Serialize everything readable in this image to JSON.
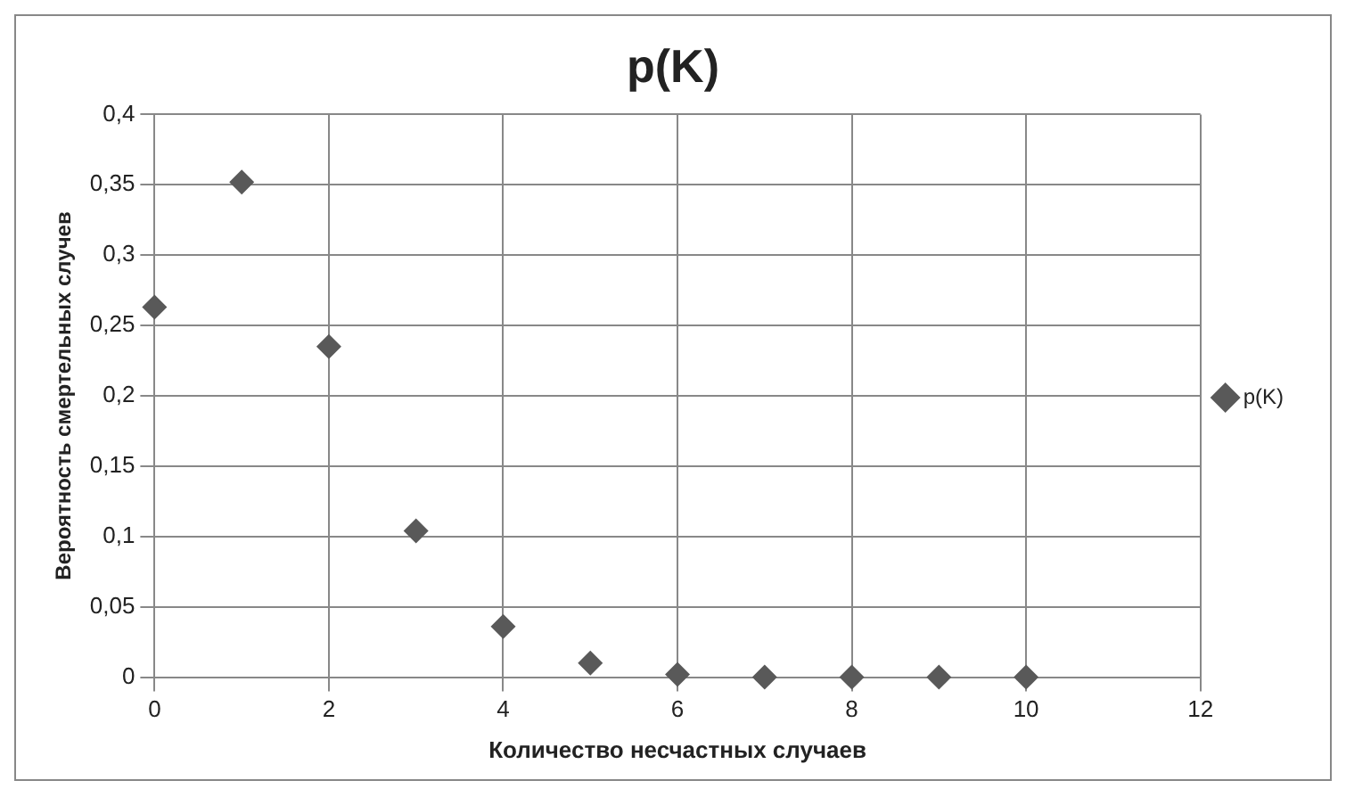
{
  "chart_data": {
    "type": "scatter",
    "title": "p(K)",
    "xlabel": "Количество несчастных случаев",
    "ylabel": "Вероятность смертельных случев",
    "x": [
      0,
      1,
      2,
      3,
      4,
      5,
      6,
      7,
      8,
      9,
      10
    ],
    "series": [
      {
        "name": "p(K)",
        "color": "#595959",
        "values": [
          0.263,
          0.352,
          0.235,
          0.104,
          0.036,
          0.01,
          0.002,
          0,
          0,
          0,
          0
        ]
      }
    ],
    "xlim": [
      0,
      12
    ],
    "xticks": [
      0,
      2,
      4,
      6,
      8,
      10,
      12
    ],
    "ylim": [
      0,
      0.4
    ],
    "yticks": [
      {
        "value": 0,
        "label": "0"
      },
      {
        "value": 0.05,
        "label": "0,05"
      },
      {
        "value": 0.1,
        "label": "0,1"
      },
      {
        "value": 0.15,
        "label": "0,15"
      },
      {
        "value": 0.2,
        "label": "0,2"
      },
      {
        "value": 0.25,
        "label": "0,25"
      },
      {
        "value": 0.3,
        "label": "0,3"
      },
      {
        "value": 0.35,
        "label": "0,35"
      },
      {
        "value": 0.4,
        "label": "0,4"
      }
    ],
    "grid": true,
    "legend": "right",
    "marker": "diamond"
  }
}
